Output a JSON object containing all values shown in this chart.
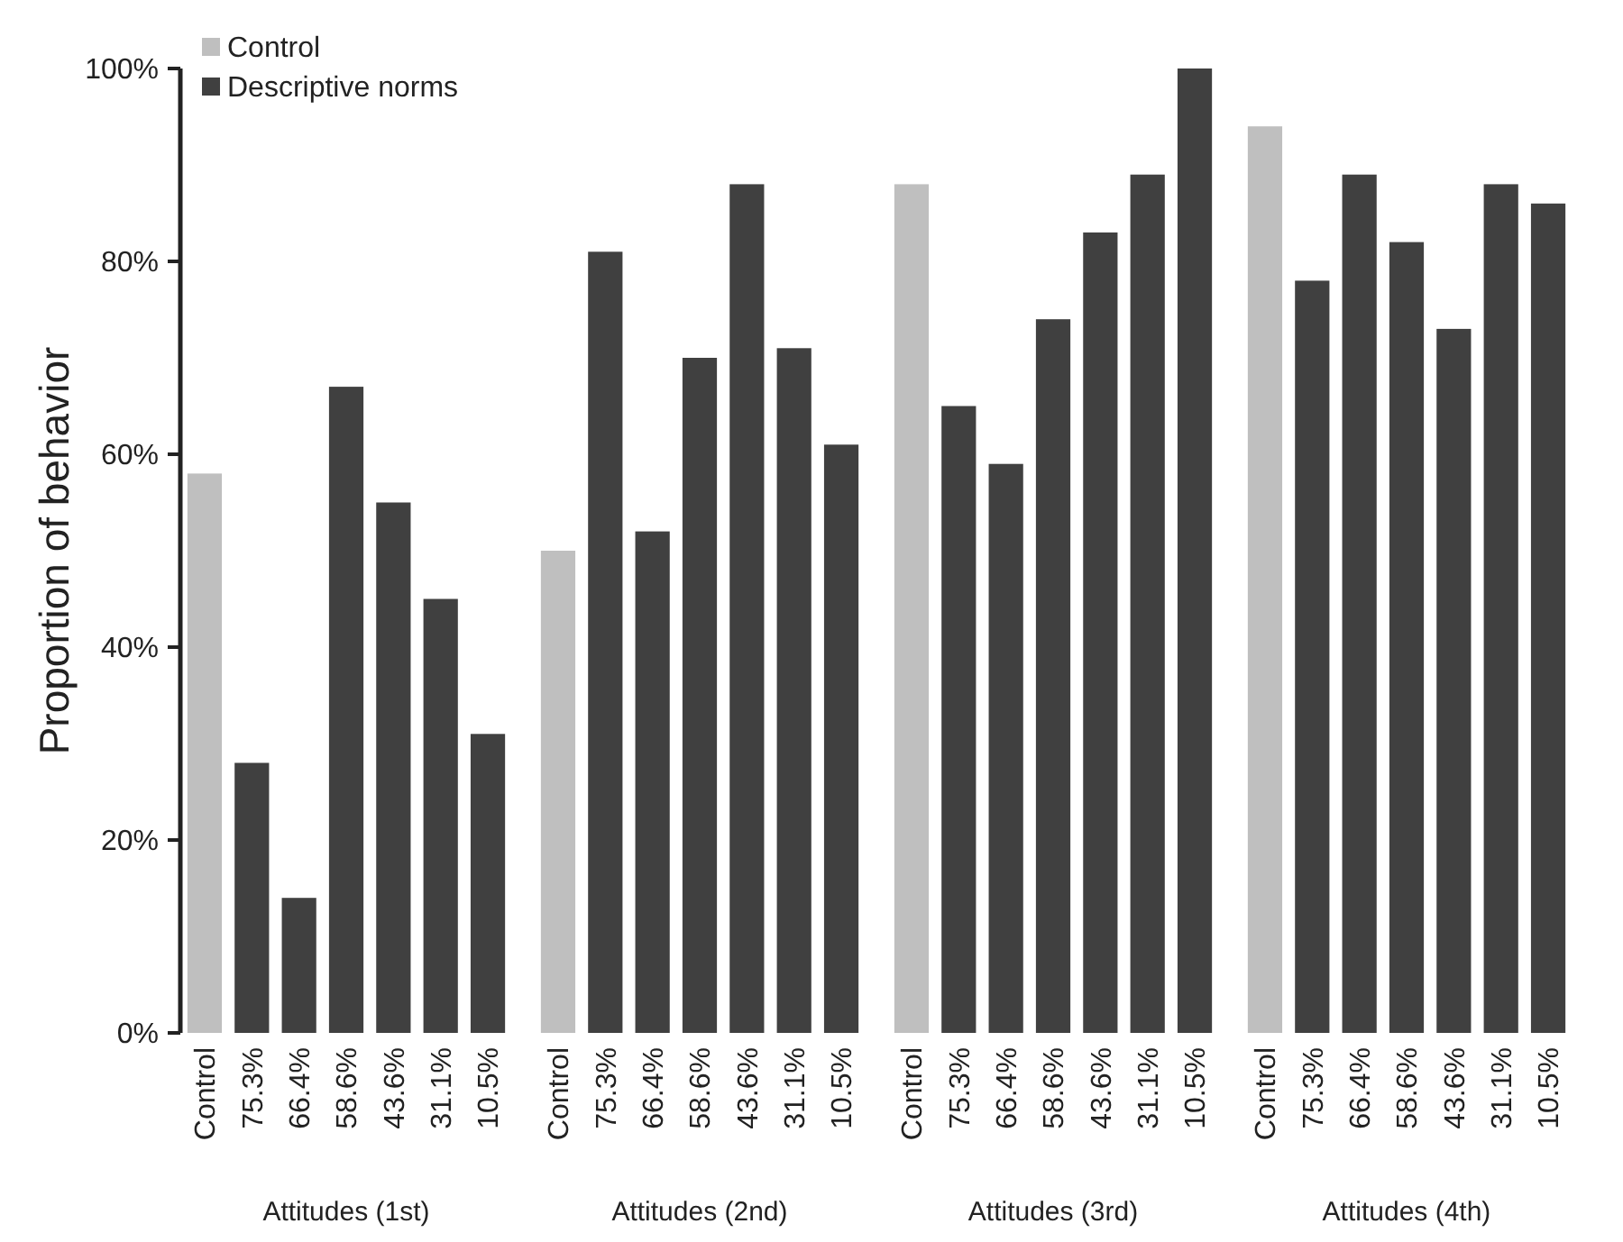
{
  "chart_data": [
    {
      "type": "bar",
      "xlabel": "Attitudes (1st)",
      "ylabel": "Proportion of behavior",
      "categories": [
        "Control",
        "75.3%",
        "66.4%",
        "58.6%",
        "43.6%",
        "31.1%",
        "10.5%"
      ],
      "legend": "top left",
      "ylim": [
        0,
        100
      ],
      "yticks": [
        {
          "value": 0,
          "label": "0%"
        },
        {
          "value": 20,
          "label": "20%"
        },
        {
          "value": 40,
          "label": "40%"
        },
        {
          "value": 60,
          "label": "60%"
        },
        {
          "value": 80,
          "label": "80%"
        },
        {
          "value": 100,
          "label": "100%"
        }
      ],
      "series": [
        {
          "name": "Control",
          "color": "#bfbfbf",
          "values": [
            58,
            null,
            null,
            null,
            null,
            null,
            null
          ]
        },
        {
          "name": "Descriptive norms",
          "color": "#404040",
          "values": [
            null,
            28,
            14,
            67,
            55,
            45,
            31
          ]
        }
      ]
    },
    {
      "type": "bar",
      "xlabel": "Attitudes (2nd)",
      "categories": [
        "Control",
        "75.3%",
        "66.4%",
        "58.6%",
        "43.6%",
        "31.1%",
        "10.5%"
      ],
      "ylim": [
        0,
        100
      ],
      "tick_labels": "x",
      "series": [
        {
          "color": "#bfbfbf",
          "values": [
            50,
            null,
            null,
            null,
            null,
            null,
            null
          ]
        },
        {
          "color": "#404040",
          "values": [
            null,
            81,
            52,
            70,
            88,
            71,
            61
          ]
        }
      ]
    },
    {
      "type": "bar",
      "xlabel": "Attitudes (3rd)",
      "categories": [
        "Control",
        "75.3%",
        "66.4%",
        "58.6%",
        "43.6%",
        "31.1%",
        "10.5%"
      ],
      "ylim": [
        0,
        100
      ],
      "tick_labels": "x",
      "series": [
        {
          "color": "#bfbfbf",
          "values": [
            88,
            null,
            null,
            null,
            null,
            null,
            null
          ]
        },
        {
          "color": "#404040",
          "values": [
            null,
            65,
            59,
            74,
            83,
            89,
            100
          ]
        }
      ]
    },
    {
      "type": "bar",
      "xlabel": "Attitudes (4th)",
      "categories": [
        "Control",
        "75.3%",
        "66.4%",
        "58.6%",
        "43.6%",
        "31.1%",
        "10.5%"
      ],
      "ylim": [
        0,
        100
      ],
      "tick_labels": "x",
      "series": [
        {
          "color": "#bfbfbf",
          "values": [
            94,
            null,
            null,
            null,
            null,
            null,
            null
          ]
        },
        {
          "color": "#404040",
          "values": [
            null,
            78,
            89,
            82,
            73,
            88,
            86
          ]
        }
      ]
    }
  ]
}
